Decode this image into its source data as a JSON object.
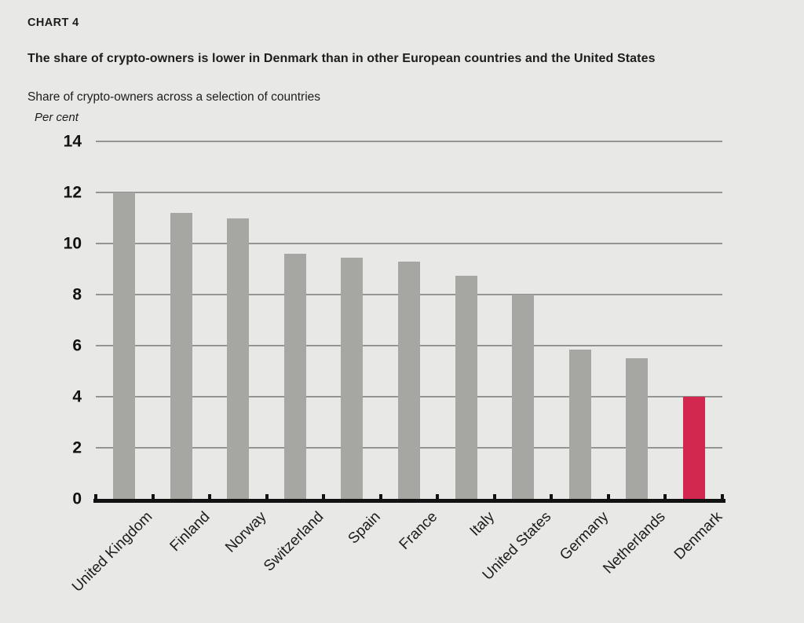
{
  "header": {
    "chart_label": "CHART 4",
    "title": "The share of crypto-owners is lower in Denmark than in other European countries and the United States",
    "subtitle": "Share of crypto-owners across a selection of countries",
    "unit_label": "Per cent"
  },
  "chart_data": {
    "type": "bar",
    "title": "Share of crypto-owners across a selection of countries",
    "xlabel": "",
    "ylabel": "Per cent",
    "categories": [
      "United Kingdom",
      "Finland",
      "Norway",
      "Switzerland",
      "Spain",
      "France",
      "Italy",
      "United States",
      "Germany",
      "Netherlands",
      "Denmark"
    ],
    "values": [
      12.0,
      11.2,
      11.0,
      9.6,
      9.45,
      9.3,
      8.75,
      8.0,
      5.85,
      5.5,
      4.0
    ],
    "highlight_category": "Denmark",
    "ylim": [
      0,
      14
    ],
    "yticks": [
      0,
      2,
      4,
      6,
      8,
      10,
      12,
      14
    ],
    "grid": true,
    "legend_position": "none"
  },
  "colors": {
    "background": "#e8e8e7",
    "bar": "#a6a6a3",
    "highlight": "#d22850",
    "gridline": "#9b9b99",
    "axis": "#121212",
    "text": "#1d1d1b"
  }
}
